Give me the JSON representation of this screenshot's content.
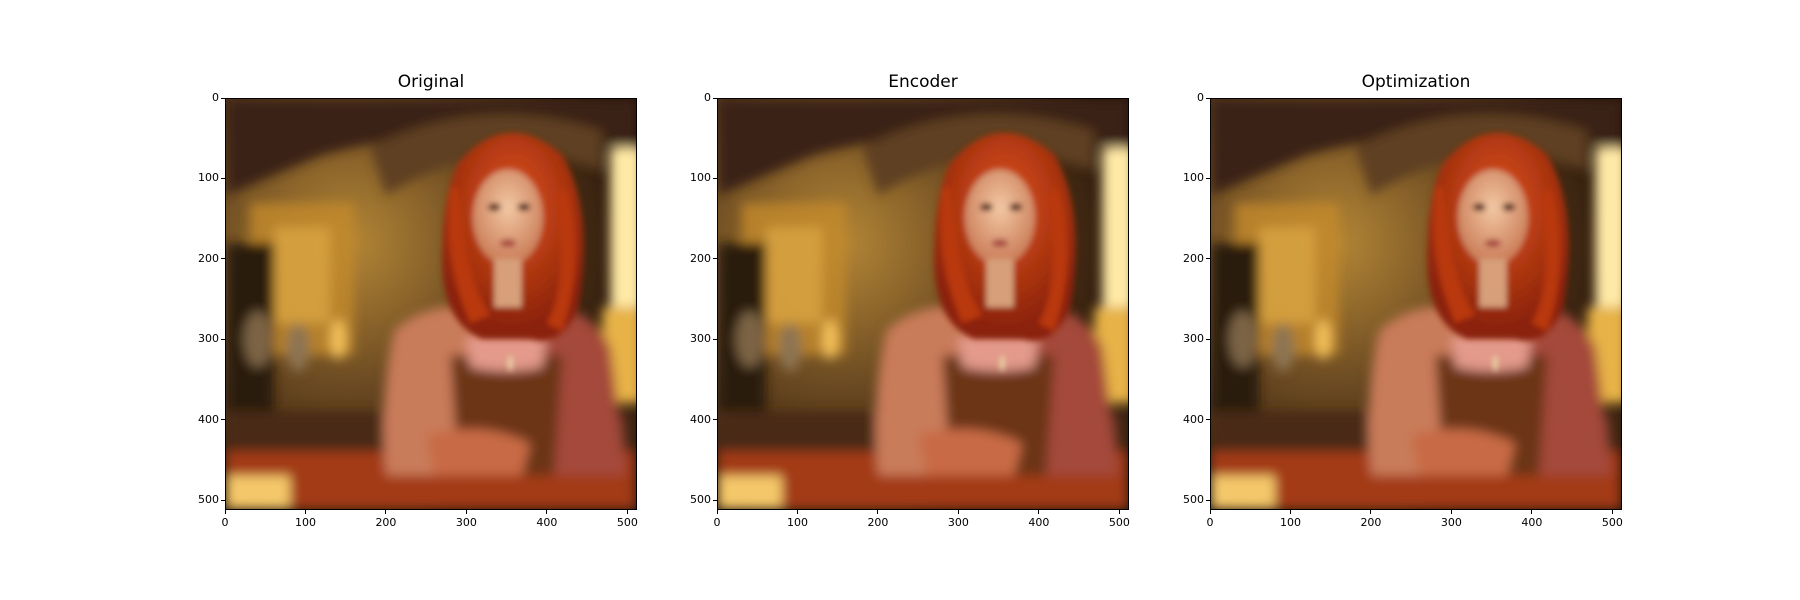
{
  "figure": {
    "panels": [
      {
        "title": "Original"
      },
      {
        "title": "Encoder"
      },
      {
        "title": "Optimization"
      }
    ],
    "x_ticks": [
      "0",
      "100",
      "200",
      "300",
      "400",
      "500"
    ],
    "y_ticks": [
      "0",
      "100",
      "200",
      "300",
      "400",
      "500"
    ],
    "image_extent": [
      0,
      512
    ]
  }
}
